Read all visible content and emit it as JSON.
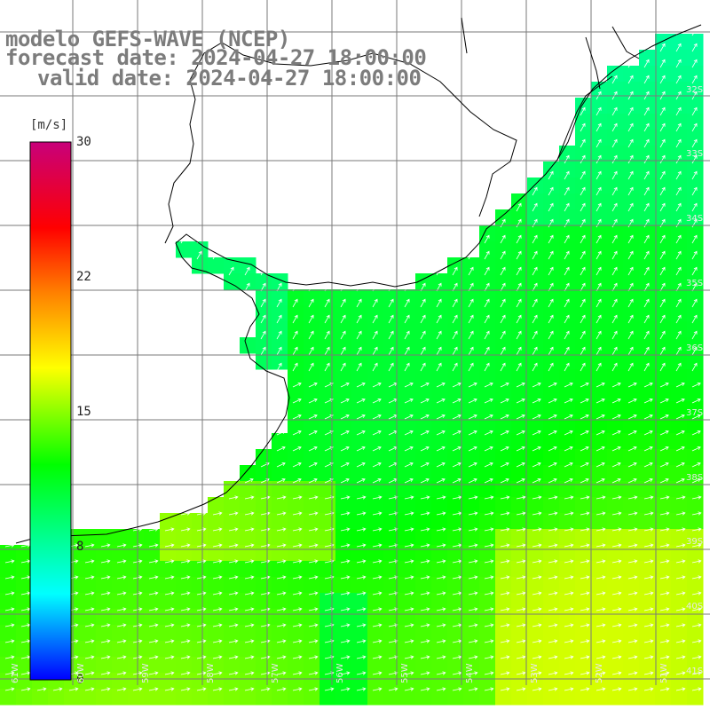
{
  "title": {
    "line1": "modelo GEFS-WAVE (NCEP)",
    "line2": "forecast date: 2024-04-27 18:00:00",
    "line3": "valid date: 2024-04-27 18:00:00"
  },
  "colorbar": {
    "unit": "[m/s]",
    "ticks": [
      "30",
      "22",
      "15",
      "8",
      "0"
    ],
    "stops": [
      "#0000ff",
      "#00ffff",
      "#00ff00",
      "#ffff00",
      "#ff8000",
      "#ff0000",
      "#c8007a"
    ]
  },
  "lat_labels": [
    "32S",
    "33S",
    "34S",
    "35S",
    "36S",
    "37S",
    "38S",
    "39S",
    "40S",
    "41S"
  ],
  "lon_labels": [
    "61W",
    "60W",
    "59W",
    "58W",
    "57W",
    "56W",
    "55W",
    "54W",
    "53W",
    "52W",
    "51W"
  ],
  "colors": {
    "land": "#ffffff",
    "grid": "#7a7a7a",
    "coast": "#000000",
    "arrow": "#ffffff",
    "title": "#7c7c7c"
  }
}
